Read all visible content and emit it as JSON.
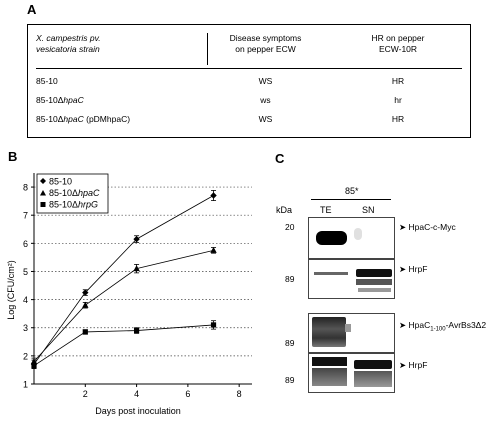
{
  "panel_a": {
    "letter": "A",
    "header_strain_line1": "X. campestris pv.",
    "header_strain_line2": "vesicatoria strain",
    "header_disease_line1": "Disease symptoms",
    "header_disease_line2": "on pepper ECW",
    "header_hr_line1": "HR on pepper",
    "header_hr_line2": "ECW-10R",
    "rows": [
      {
        "strain_a": "85-10",
        "strain_b": "",
        "strain_c": "",
        "disease": "WS",
        "hr": "HR"
      },
      {
        "strain_a": "85-10Δ",
        "strain_b": "hpaC",
        "strain_c": "",
        "disease": "ws",
        "hr": "hr"
      },
      {
        "strain_a": "85-10Δ",
        "strain_b": "hpaC",
        "strain_c": " (pDMhpaC)",
        "disease": "WS",
        "hr": "HR"
      }
    ]
  },
  "panel_b": {
    "letter": "B",
    "chart_data": {
      "type": "line",
      "xlabel": "Days post inoculation",
      "ylabel": "Log (CFU/cm²)",
      "x_ticks": [
        2,
        4,
        6,
        8
      ],
      "y_ticks": [
        1,
        2,
        3,
        4,
        5,
        6,
        7,
        8
      ],
      "xlim": [
        0,
        8.5
      ],
      "ylim": [
        1,
        8.5
      ],
      "grid": "horizontal dotted",
      "legend_position": "top-left",
      "series": [
        {
          "name_a": "85-10",
          "name_b": "",
          "marker": "diamond",
          "x": [
            0,
            2,
            4,
            7
          ],
          "y": [
            1.7,
            4.25,
            6.15,
            7.7
          ],
          "err": [
            0.15,
            0.1,
            0.12,
            0.18
          ]
        },
        {
          "name_a": "85-10Δ",
          "name_b": "hpaC",
          "marker": "triangle",
          "x": [
            0,
            2,
            4,
            7
          ],
          "y": [
            1.8,
            3.8,
            5.1,
            5.75
          ],
          "err": [
            0.12,
            0.1,
            0.15,
            0.1
          ]
        },
        {
          "name_a": "85-10Δ",
          "name_b": "hrpG",
          "marker": "square",
          "x": [
            0,
            2,
            4,
            7
          ],
          "y": [
            1.65,
            2.85,
            2.9,
            3.1
          ],
          "err": [
            0.1,
            0.08,
            0.1,
            0.15
          ]
        }
      ]
    }
  },
  "panel_c": {
    "letter": "C",
    "strain_header": "85*",
    "kda_label": "kDa",
    "lane_te": "TE",
    "lane_sn": "SN",
    "blot1": {
      "marker": "20",
      "label": "HpaC-c-Myc"
    },
    "blot2": {
      "marker": "89",
      "label": "HrpF"
    },
    "blot3": {
      "marker": "89",
      "label_a": "HpaC",
      "label_sub": "1-100",
      "label_b": "-AvrBs3Δ2"
    },
    "blot4": {
      "marker": "89",
      "label": "HrpF"
    }
  }
}
